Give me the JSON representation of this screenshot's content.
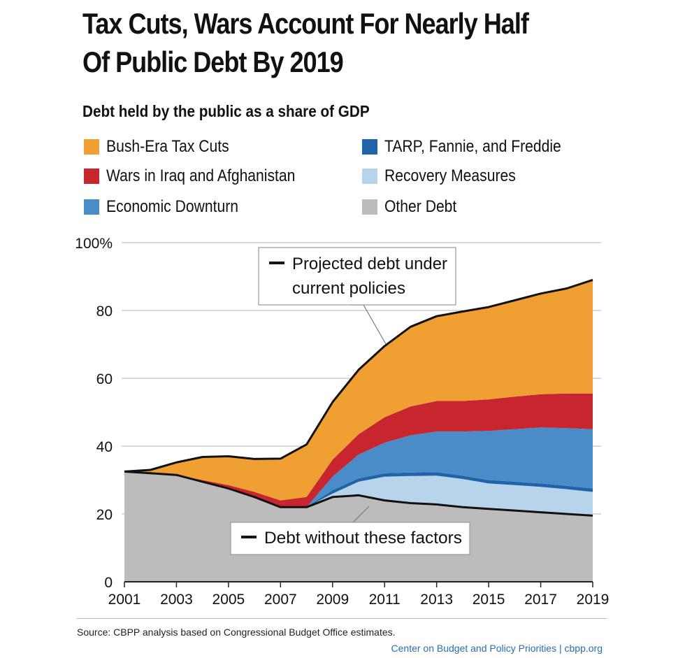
{
  "title_lines": [
    "Tax Cuts, Wars Account For Nearly Half",
    "Of Public Debt By 2019"
  ],
  "subtitle": "Debt held by the public as a share of GDP",
  "legend": [
    {
      "label": "Bush-Era Tax Cuts",
      "color": "#f0a033"
    },
    {
      "label": "Wars in Iraq and Afghanistan",
      "color": "#c8262e"
    },
    {
      "label": "Economic Downturn",
      "color": "#4a8cc7"
    },
    {
      "label": "TARP, Fannie, and Freddie",
      "color": "#1f64a8"
    },
    {
      "label": "Recovery Measures",
      "color": "#b8d4ea"
    },
    {
      "label": "Other Debt",
      "color": "#bcbcbc"
    }
  ],
  "chart_data": {
    "type": "area",
    "stacked": true,
    "x": [
      2001,
      2002,
      2003,
      2004,
      2005,
      2006,
      2007,
      2008,
      2009,
      2010,
      2011,
      2012,
      2013,
      2014,
      2015,
      2016,
      2017,
      2018,
      2019
    ],
    "series": [
      {
        "name": "Other Debt",
        "color": "#bcbcbc",
        "values": [
          32.5,
          32.0,
          31.5,
          29.5,
          27.5,
          25.0,
          22.0,
          22.0,
          25.0,
          25.5,
          24.0,
          23.2,
          22.8,
          22.0,
          21.5,
          21.0,
          20.5,
          20.0,
          19.5
        ]
      },
      {
        "name": "Recovery Measures",
        "color": "#b8d4ea",
        "values": [
          0,
          0,
          0,
          0,
          0,
          0,
          0,
          0,
          1.0,
          4.0,
          7.0,
          8.0,
          8.5,
          8.3,
          7.5,
          7.5,
          7.5,
          7.3,
          7.0
        ]
      },
      {
        "name": "TARP, Fannie, and Freddie",
        "color": "#1f64a8",
        "values": [
          0,
          0,
          0,
          0,
          0,
          0,
          0,
          0,
          1.0,
          1.0,
          1.0,
          1.0,
          1.0,
          1.0,
          1.0,
          1.0,
          1.0,
          1.0,
          1.0
        ]
      },
      {
        "name": "Economic Downturn",
        "color": "#4a8cc7",
        "values": [
          0,
          0,
          0,
          0,
          0,
          0,
          0,
          0,
          4.0,
          7.0,
          9.0,
          11.0,
          12.0,
          13.0,
          14.5,
          15.5,
          16.5,
          17.0,
          17.5
        ]
      },
      {
        "name": "Wars in Iraq and Afghanistan",
        "color": "#c8262e",
        "values": [
          0,
          0,
          0,
          0.5,
          1.0,
          1.5,
          2.0,
          3.0,
          5.0,
          6.0,
          7.5,
          8.5,
          9.0,
          9.0,
          9.3,
          9.6,
          9.8,
          10.2,
          10.5
        ]
      },
      {
        "name": "Bush-Era Tax Cuts",
        "color": "#f0a033",
        "values": [
          0,
          1.0,
          3.7,
          6.8,
          8.5,
          9.7,
          12.3,
          15.5,
          17.0,
          19.0,
          21.0,
          23.5,
          25.0,
          26.4,
          27.2,
          28.4,
          29.7,
          31.0,
          33.5
        ]
      }
    ],
    "ylim": [
      0,
      100
    ],
    "yticks": [
      "100%",
      "80",
      "60",
      "40",
      "20",
      "0"
    ],
    "xticks": [
      "2001",
      "2003",
      "2005",
      "2007",
      "2009",
      "2011",
      "2013",
      "2015",
      "2017",
      "2019"
    ],
    "grid": true,
    "annotations": [
      {
        "text_lines": [
          "Projected debt under",
          "current policies"
        ]
      },
      {
        "text_lines": [
          "Debt without these factors"
        ]
      }
    ]
  },
  "footer": {
    "source": "Source:  CBPP analysis based on Congressional Budget Office estimates.",
    "credit": "Center on Budget and Policy Priorities | cbpp.org"
  }
}
